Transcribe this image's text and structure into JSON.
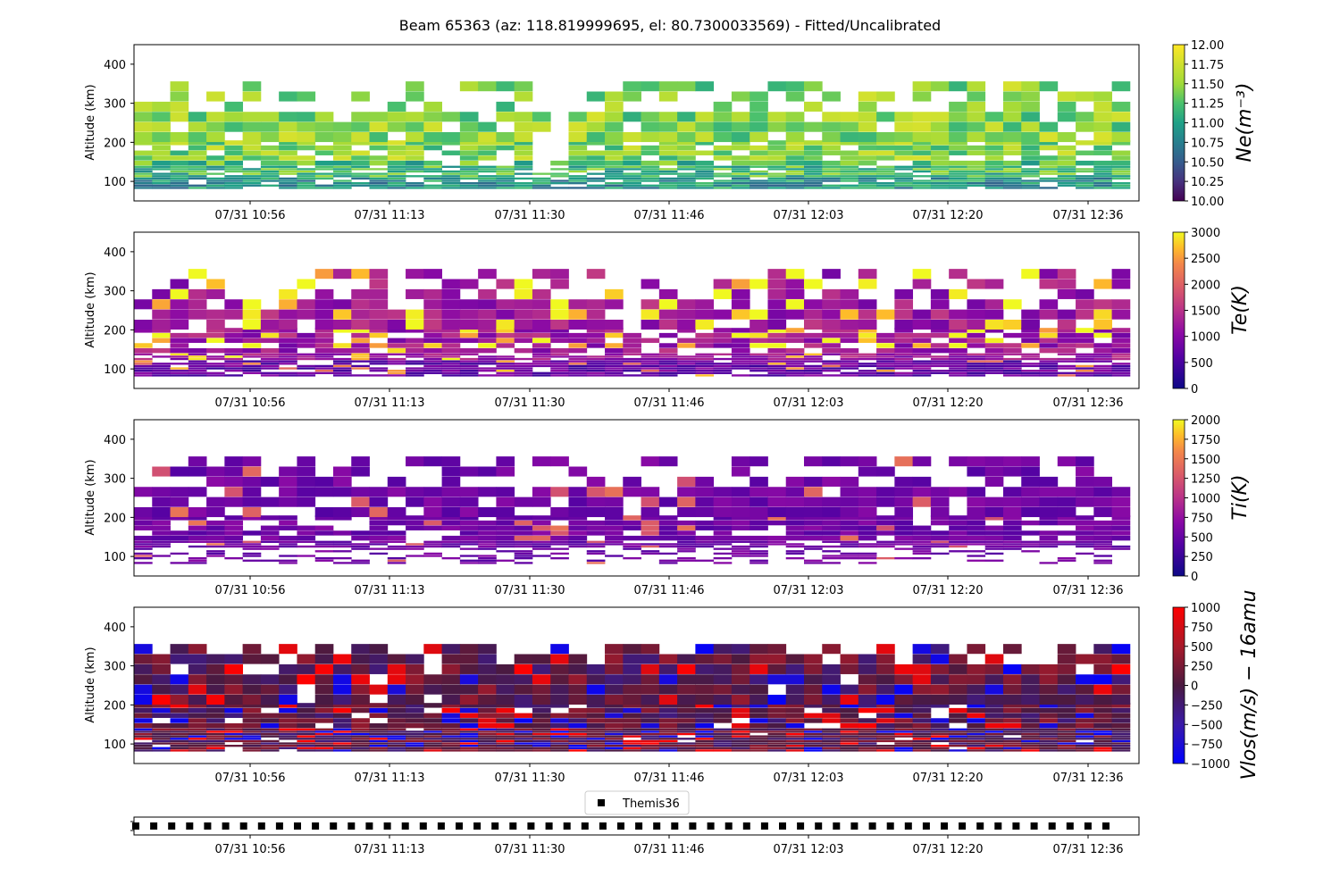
{
  "figure": {
    "title": "Beam 65363 (az: 118.819999695, el: 80.7300033569) - Fitted/Uncalibrated"
  },
  "chart_data": [
    {
      "type": "heatmap",
      "id": "ne",
      "ylabel": "Altitude (km)",
      "ylim": [
        50,
        450
      ],
      "yticks": [
        100,
        200,
        300,
        400
      ],
      "xtick_labels": [
        "07/31 10:56",
        "07/31 11:13",
        "07/31 11:30",
        "07/31 11:46",
        "07/31 12:03",
        "07/31 12:20",
        "07/31 12:36"
      ],
      "colorbar": {
        "label": "Ne(m^-3)",
        "label_display": "Ne(m⁻³)",
        "colormap": "viridis",
        "range": [
          10.0,
          12.0
        ],
        "tick_labels": [
          "10.00",
          "10.25",
          "10.50",
          "10.75",
          "11.00",
          "11.25",
          "11.50",
          "11.75",
          "12.00"
        ]
      }
    },
    {
      "type": "heatmap",
      "id": "te",
      "ylabel": "Altitude (km)",
      "ylim": [
        50,
        450
      ],
      "yticks": [
        100,
        200,
        300,
        400
      ],
      "xtick_labels": [
        "07/31 10:56",
        "07/31 11:13",
        "07/31 11:30",
        "07/31 11:46",
        "07/31 12:03",
        "07/31 12:20",
        "07/31 12:36"
      ],
      "colorbar": {
        "label": "Te(K)",
        "colormap": "plasma",
        "range": [
          0,
          3000
        ],
        "tick_labels": [
          "0",
          "500",
          "1000",
          "1500",
          "2000",
          "2500",
          "3000"
        ]
      }
    },
    {
      "type": "heatmap",
      "id": "ti",
      "ylabel": "Altitude (km)",
      "ylim": [
        50,
        450
      ],
      "yticks": [
        100,
        200,
        300,
        400
      ],
      "xtick_labels": [
        "07/31 10:56",
        "07/31 11:13",
        "07/31 11:30",
        "07/31 11:46",
        "07/31 12:03",
        "07/31 12:20",
        "07/31 12:36"
      ],
      "colorbar": {
        "label": "Ti(K)",
        "colormap": "plasma",
        "range": [
          0,
          2000
        ],
        "tick_labels": [
          "0",
          "250",
          "500",
          "750",
          "1000",
          "1250",
          "1500",
          "1750",
          "2000"
        ]
      }
    },
    {
      "type": "heatmap",
      "id": "vlos",
      "ylabel": "Altitude (km)",
      "ylim": [
        50,
        450
      ],
      "yticks": [
        100,
        200,
        300,
        400
      ],
      "xtick_labels": [
        "07/31 10:56",
        "07/31 11:13",
        "07/31 11:30",
        "07/31 11:46",
        "07/31 12:03",
        "07/31 12:20",
        "07/31 12:36"
      ],
      "colorbar": {
        "label": "Vlos(m/s) − 16amu",
        "colormap": "bwr-dark",
        "range": [
          -1000,
          1000
        ],
        "tick_labels": [
          "−1000",
          "−750",
          "−500",
          "−250",
          "0",
          "250",
          "500",
          "750",
          "1000"
        ]
      }
    },
    {
      "type": "scatter",
      "id": "themis",
      "legend": "Themis36",
      "marker": "square",
      "marker_count": 55,
      "xtick_labels": [
        "07/31 10:56",
        "07/31 11:13",
        "07/31 11:30",
        "07/31 11:46",
        "07/31 12:03",
        "07/31 12:20",
        "07/31 12:36"
      ]
    }
  ],
  "colors": {
    "axis": "#000000",
    "background": "#ffffff"
  }
}
